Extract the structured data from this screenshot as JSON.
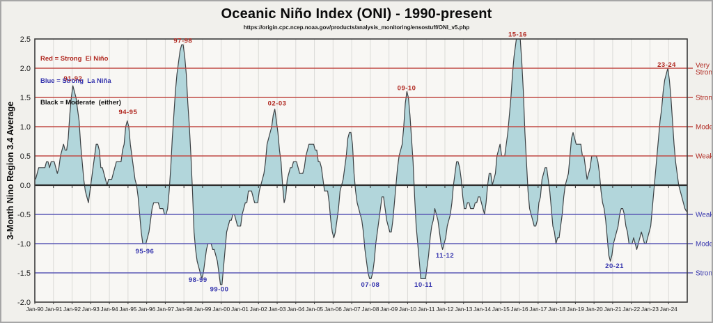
{
  "header": {
    "title": "Oceanic Niño Index (ONI) - 1990-present",
    "subtitle": "https://origin.cpc.ncep.noaa.gov/products/analysis_monitoring/ensostuff/ONI_v5.php"
  },
  "legend": {
    "el_nino": "Red = Strong  El Niño",
    "la_nina": "Blue = Strong  La Niña",
    "moderate": "Black = Moderate  (either)"
  },
  "y_axis": {
    "title": "3-Month Nino Region 3.4 Average",
    "tick_labels": [
      "2.5",
      "2.0",
      "1.5",
      "1.0",
      "0.5",
      "0.0",
      "-0.5",
      "-1.0",
      "-1.5",
      "-2.0"
    ],
    "tick_values": [
      2.5,
      2.0,
      1.5,
      1.0,
      0.5,
      0.0,
      -0.5,
      -1.0,
      -1.5,
      -2.0
    ]
  },
  "x_axis": {
    "tick_labels": [
      "Jan-90",
      "Jan-91",
      "Jan-92",
      "Jan-93",
      "Jan-94",
      "Jan-95",
      "Jan-96",
      "Jan-97",
      "Jan-98",
      "Jan-99",
      "Jan-00",
      "Jan-01",
      "Jan-02",
      "Jan-03",
      "Jan-04",
      "Jan-05",
      "Jan-06",
      "Jan-07",
      "Jan-08",
      "Jan-09",
      "Jan-10",
      "Jan-11",
      "Jan-12",
      "Jan-13",
      "Jan-14",
      "Jan-15",
      "Jan-16",
      "Jan-17",
      "Jan-18",
      "Jan-19",
      "Jan-20",
      "Jan-21",
      "Jan-22",
      "Jan-23",
      "Jan-24"
    ]
  },
  "colors": {
    "page_bg": "#f1f0ec",
    "plot_bg": "#f8f7f4",
    "grid": "#dadad7",
    "frame": "#3a3a3a",
    "zero_line": "#2c2c2c",
    "area_fill": "#b2d6db",
    "curve": "#3c4043",
    "el_nino_line": "#bf4a44",
    "la_nina_line": "#5a58b5",
    "el_nino_text": "#b02820",
    "la_nina_text": "#3534ad",
    "legend_black": "#111111",
    "tick_text": "#1a1a1a"
  },
  "chart_data": {
    "type": "area",
    "title": "Oceanic Niño Index (ONI) - 1990-present",
    "xlabel": "",
    "ylabel": "3-Month Nino Region 3.4 Average",
    "ylim": [
      -2.0,
      2.5
    ],
    "x_range_years": [
      1990,
      2025
    ],
    "points_per_year": 12,
    "x_start_year": 1990,
    "grid": "vertical-yearly",
    "legend_position": "top-left-inside",
    "values": [
      0.1,
      0.2,
      0.3,
      0.3,
      0.3,
      0.3,
      0.3,
      0.4,
      0.4,
      0.3,
      0.4,
      0.4,
      0.4,
      0.3,
      0.2,
      0.3,
      0.5,
      0.6,
      0.7,
      0.6,
      0.6,
      0.8,
      1.2,
      1.5,
      1.7,
      1.6,
      1.5,
      1.3,
      1.1,
      0.7,
      0.4,
      0.1,
      -0.1,
      -0.2,
      -0.3,
      -0.1,
      0.1,
      0.3,
      0.5,
      0.7,
      0.7,
      0.6,
      0.3,
      0.3,
      0.2,
      0.1,
      0.0,
      0.1,
      0.1,
      0.1,
      0.2,
      0.3,
      0.4,
      0.4,
      0.4,
      0.4,
      0.6,
      0.7,
      1.0,
      1.1,
      1.0,
      0.7,
      0.5,
      0.3,
      0.1,
      0.0,
      -0.2,
      -0.5,
      -0.8,
      -1.0,
      -1.0,
      -1.0,
      -0.9,
      -0.8,
      -0.6,
      -0.4,
      -0.3,
      -0.3,
      -0.3,
      -0.3,
      -0.4,
      -0.4,
      -0.4,
      -0.5,
      -0.5,
      -0.4,
      -0.1,
      0.3,
      0.8,
      1.2,
      1.6,
      1.9,
      2.1,
      2.3,
      2.4,
      2.4,
      2.2,
      1.9,
      1.4,
      1.0,
      0.5,
      -0.1,
      -0.8,
      -1.1,
      -1.3,
      -1.4,
      -1.5,
      -1.6,
      -1.5,
      -1.3,
      -1.1,
      -1.0,
      -1.0,
      -1.0,
      -1.1,
      -1.1,
      -1.2,
      -1.3,
      -1.5,
      -1.7,
      -1.7,
      -1.4,
      -1.1,
      -0.8,
      -0.7,
      -0.6,
      -0.6,
      -0.5,
      -0.5,
      -0.6,
      -0.7,
      -0.7,
      -0.7,
      -0.5,
      -0.4,
      -0.3,
      -0.3,
      -0.1,
      -0.1,
      -0.1,
      -0.2,
      -0.3,
      -0.3,
      -0.3,
      -0.1,
      0.0,
      0.1,
      0.2,
      0.4,
      0.7,
      0.8,
      0.9,
      1.0,
      1.2,
      1.3,
      1.1,
      0.9,
      0.6,
      0.4,
      0.0,
      -0.3,
      -0.2,
      0.1,
      0.2,
      0.3,
      0.3,
      0.4,
      0.4,
      0.4,
      0.3,
      0.2,
      0.2,
      0.2,
      0.3,
      0.5,
      0.6,
      0.7,
      0.7,
      0.7,
      0.7,
      0.6,
      0.6,
      0.4,
      0.4,
      0.3,
      0.1,
      -0.1,
      -0.1,
      -0.1,
      -0.3,
      -0.6,
      -0.8,
      -0.9,
      -0.8,
      -0.6,
      -0.4,
      -0.1,
      0.0,
      0.1,
      0.3,
      0.5,
      0.8,
      0.9,
      0.9,
      0.7,
      0.2,
      -0.1,
      -0.3,
      -0.4,
      -0.5,
      -0.6,
      -0.8,
      -1.1,
      -1.3,
      -1.5,
      -1.6,
      -1.6,
      -1.5,
      -1.3,
      -1.0,
      -0.8,
      -0.6,
      -0.4,
      -0.2,
      -0.2,
      -0.4,
      -0.6,
      -0.7,
      -0.8,
      -0.8,
      -0.6,
      -0.3,
      0.0,
      0.3,
      0.5,
      0.6,
      0.7,
      1.0,
      1.4,
      1.6,
      1.5,
      1.2,
      0.8,
      0.4,
      -0.2,
      -0.7,
      -1.0,
      -1.3,
      -1.6,
      -1.6,
      -1.6,
      -1.6,
      -1.4,
      -1.2,
      -0.9,
      -0.7,
      -0.6,
      -0.4,
      -0.5,
      -0.6,
      -0.8,
      -1.0,
      -1.1,
      -1.0,
      -0.9,
      -0.7,
      -0.6,
      -0.5,
      -0.3,
      0.0,
      0.2,
      0.4,
      0.4,
      0.3,
      0.1,
      -0.2,
      -0.4,
      -0.4,
      -0.3,
      -0.3,
      -0.4,
      -0.4,
      -0.4,
      -0.3,
      -0.3,
      -0.2,
      -0.2,
      -0.3,
      -0.4,
      -0.5,
      -0.3,
      0.0,
      0.2,
      0.2,
      0.0,
      0.1,
      0.2,
      0.5,
      0.6,
      0.7,
      0.5,
      0.5,
      0.5,
      0.7,
      0.9,
      1.2,
      1.5,
      1.9,
      2.2,
      2.4,
      2.6,
      2.6,
      2.5,
      2.1,
      1.6,
      0.9,
      0.4,
      -0.1,
      -0.4,
      -0.5,
      -0.6,
      -0.7,
      -0.7,
      -0.6,
      -0.3,
      -0.2,
      0.1,
      0.2,
      0.3,
      0.3,
      0.1,
      -0.1,
      -0.4,
      -0.7,
      -0.8,
      -1.0,
      -0.9,
      -0.9,
      -0.7,
      -0.5,
      -0.2,
      0.0,
      0.1,
      0.2,
      0.5,
      0.8,
      0.9,
      0.8,
      0.7,
      0.7,
      0.7,
      0.7,
      0.5,
      0.5,
      0.3,
      0.1,
      0.2,
      0.3,
      0.5,
      0.5,
      0.5,
      0.5,
      0.4,
      0.2,
      -0.1,
      -0.3,
      -0.4,
      -0.6,
      -0.9,
      -1.2,
      -1.3,
      -1.2,
      -1.0,
      -0.9,
      -0.8,
      -0.7,
      -0.5,
      -0.4,
      -0.4,
      -0.5,
      -0.7,
      -0.8,
      -1.0,
      -1.0,
      -1.0,
      -0.9,
      -1.0,
      -1.1,
      -1.0,
      -0.9,
      -0.8,
      -0.9,
      -1.0,
      -1.0,
      -0.9,
      -0.8,
      -0.7,
      -0.4,
      -0.1,
      0.2,
      0.5,
      0.8,
      1.1,
      1.3,
      1.6,
      1.8,
      1.9,
      2.0,
      1.8,
      1.5,
      1.1,
      0.7,
      0.4,
      0.2,
      0.0,
      -0.1,
      -0.2,
      -0.3,
      -0.4,
      -0.45
    ],
    "thresholds": {
      "el_nino": [
        0.5,
        1.0,
        1.5,
        2.0
      ],
      "la_nina": [
        -0.5,
        -1.0,
        -1.5
      ]
    },
    "right_labels": [
      {
        "lines": [
          "Very",
          "Strong"
        ],
        "value": 2.0,
        "side": "el_nino"
      },
      {
        "lines": [
          "Strong"
        ],
        "value": 1.5,
        "side": "el_nino"
      },
      {
        "lines": [
          "Moderate"
        ],
        "value": 1.0,
        "side": "el_nino"
      },
      {
        "lines": [
          "Weak"
        ],
        "value": 0.5,
        "side": "el_nino"
      },
      {
        "lines": [
          "Weak"
        ],
        "value": -0.5,
        "side": "la_nina"
      },
      {
        "lines": [
          "Moderate"
        ],
        "value": -1.0,
        "side": "la_nina"
      },
      {
        "lines": [
          "Strong"
        ],
        "value": -1.5,
        "side": "la_nina"
      }
    ],
    "annotations": [
      {
        "label": "91-92",
        "x": 1992.05,
        "y": 1.82,
        "type": "el_nino"
      },
      {
        "label": "94-95",
        "x": 1995.0,
        "y": 1.25,
        "type": "el_nino"
      },
      {
        "label": "97-98",
        "x": 1997.95,
        "y": 2.47,
        "type": "el_nino"
      },
      {
        "label": "02-03",
        "x": 2003.0,
        "y": 1.4,
        "type": "el_nino"
      },
      {
        "label": "09-10",
        "x": 2009.95,
        "y": 1.66,
        "type": "el_nino"
      },
      {
        "label": "15-16",
        "x": 2015.9,
        "y": 2.58,
        "type": "el_nino"
      },
      {
        "label": "23-24",
        "x": 2023.9,
        "y": 2.06,
        "type": "el_nino"
      },
      {
        "label": "95-96",
        "x": 1995.9,
        "y": -1.13,
        "type": "la_nina"
      },
      {
        "label": "98-99",
        "x": 1998.75,
        "y": -1.62,
        "type": "la_nina"
      },
      {
        "label": "99-00",
        "x": 1999.9,
        "y": -1.78,
        "type": "la_nina"
      },
      {
        "label": "07-08",
        "x": 2008.0,
        "y": -1.7,
        "type": "la_nina"
      },
      {
        "label": "10-11",
        "x": 2010.85,
        "y": -1.7,
        "type": "la_nina"
      },
      {
        "label": "11-12",
        "x": 2012.0,
        "y": -1.2,
        "type": "la_nina"
      },
      {
        "label": "20-21",
        "x": 2021.1,
        "y": -1.38,
        "type": "la_nina"
      }
    ]
  }
}
